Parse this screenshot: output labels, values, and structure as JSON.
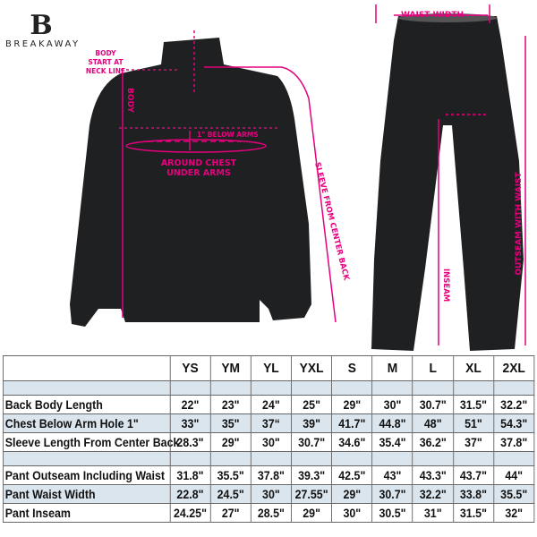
{
  "brand": {
    "logo_mark": "B",
    "name": "BREAKAWAY"
  },
  "annotations": {
    "body_start": [
      "BODY",
      "START AT",
      "NECK LINE"
    ],
    "body": "BODY",
    "below_arms": "1\" BELOW ARMS",
    "around_chest": [
      "AROUND CHEST",
      "UNDER ARMS"
    ],
    "sleeve": "SLEEVE FROM CENTER BACK",
    "waist_width": "WAIST WIDTH",
    "inseam": "INSEAM",
    "outseam": "OUTSEAM WITH WAIST"
  },
  "colors": {
    "annotation": "#e6007e",
    "garment": "#1f2022",
    "row_shade": "#dbe5ed"
  },
  "size_table": {
    "sizes": [
      "YS",
      "YM",
      "YL",
      "YXL",
      "S",
      "M",
      "L",
      "XL",
      "2XL"
    ],
    "jacket_rows": [
      {
        "label": "Back Body Length",
        "values": [
          "22\"",
          "23\"",
          "24\"",
          "25\"",
          "29\"",
          "30\"",
          "30.7\"",
          "31.5\"",
          "32.2\""
        ]
      },
      {
        "label": "Chest Below Arm Hole 1\"",
        "values": [
          "33\"",
          "35\"",
          "37“",
          "39\"",
          "41.7\"",
          "44.8\"",
          "48\"",
          "51\"",
          "54.3\""
        ]
      },
      {
        "label": "Sleeve Length From Center Back",
        "values": [
          "28.3\"",
          "29\"",
          "30\"",
          "30.7\"",
          "34.6\"",
          "35.4\"",
          "36.2\"",
          "37\"",
          "37.8\""
        ]
      }
    ],
    "pant_rows": [
      {
        "label": "Pant Outseam Including Waist",
        "values": [
          "31.8\"",
          "35.5\"",
          "37.8\"",
          "39.3\"",
          "42.5\"",
          "43\"",
          "43.3\"",
          "43.7\"",
          "44\""
        ]
      },
      {
        "label": "Pant Waist Width",
        "values": [
          "22.8\"",
          "24.5\"",
          "30\"",
          "27.55\"",
          "29\"",
          "30.7\"",
          "32.2\"",
          "33.8\"",
          "35.5\""
        ]
      },
      {
        "label": "Pant Inseam",
        "values": [
          "24.25\"",
          "27\"",
          "28.5\"",
          "29\"",
          "30\"",
          "30.5\"",
          "31\"",
          "31.5\"",
          "32\""
        ]
      }
    ]
  }
}
